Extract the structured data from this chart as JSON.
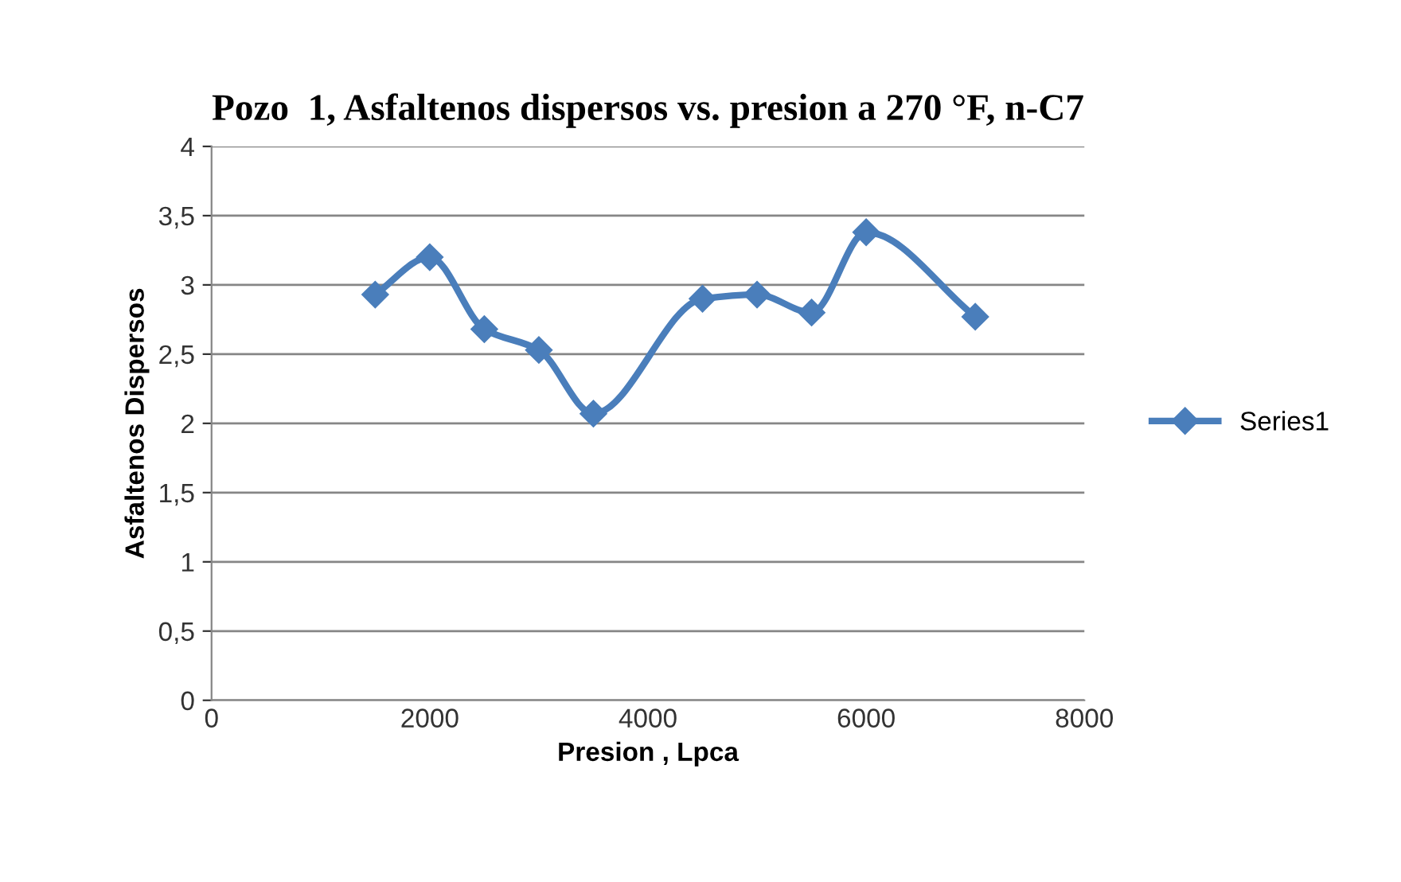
{
  "chart_data": {
    "type": "line",
    "title": "Pozo  1, Asfaltenos dispersos vs. presion a 270 °F, n-C7",
    "xlabel": "Presion , Lpca",
    "ylabel": "Asfaltenos Dispersos",
    "x": [
      1500,
      2000,
      2500,
      3000,
      3500,
      4500,
      5000,
      5500,
      6000,
      7000
    ],
    "series": [
      {
        "name": "Series1",
        "color": "#4a7ebb",
        "values": [
          2.93,
          3.2,
          2.68,
          2.53,
          2.07,
          2.9,
          2.93,
          2.8,
          3.38,
          2.77
        ]
      }
    ],
    "xlim": [
      0,
      8000
    ],
    "xticks": [
      0,
      2000,
      4000,
      6000,
      8000
    ],
    "ylim": [
      0,
      4
    ],
    "yticks": [
      0,
      {
        "value": 0.5,
        "label": "0,5"
      },
      1,
      {
        "value": 1.5,
        "label": "1,5"
      },
      2,
      {
        "value": 2.5,
        "label": "2,5"
      },
      3,
      {
        "value": 3.5,
        "label": "3,5"
      },
      4
    ],
    "grid": "y",
    "legend": "right",
    "marker": "diamond",
    "line_style": "solid"
  }
}
